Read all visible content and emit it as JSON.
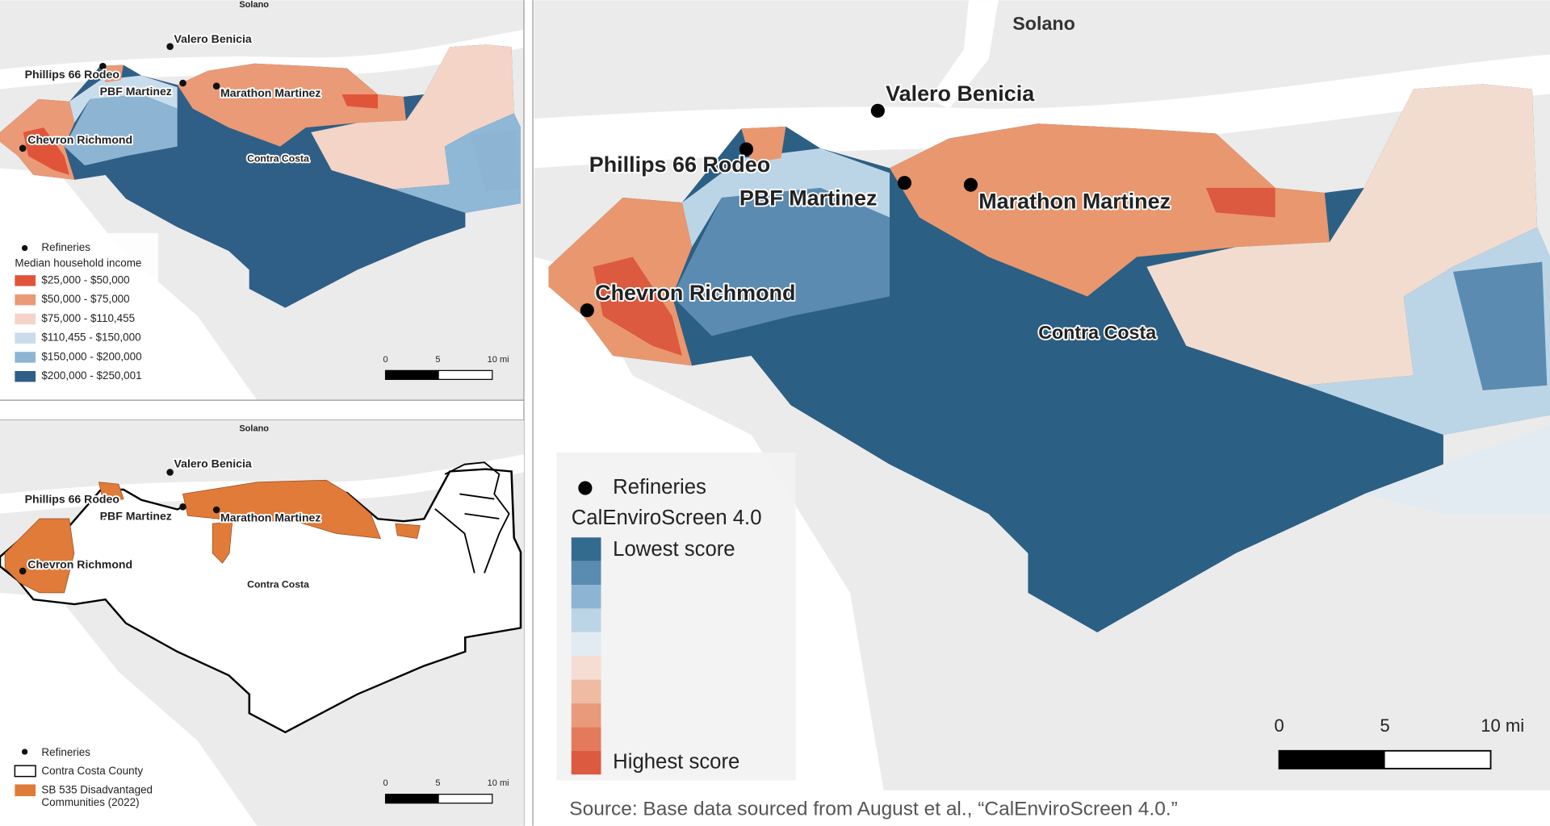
{
  "income_map": {
    "places": [
      "Solano",
      "Valero Benicia",
      "Phillips 66 Rodeo",
      "PBF Martinez",
      "Marathon Martinez",
      "Chevron Richmond",
      "Contra Costa"
    ],
    "legend": {
      "refineries": "Refineries",
      "title": "Median household income",
      "items": [
        {
          "label": "$25,000 - $50,000",
          "color": "#e0553a"
        },
        {
          "label": "$50,000 - $75,000",
          "color": "#ea9a76"
        },
        {
          "label": "$75,000 - $110,455",
          "color": "#f3d4c6"
        },
        {
          "label": "$110,455 - $150,000",
          "color": "#c9dceb"
        },
        {
          "label": "$150,000 - $200,000",
          "color": "#8db5d3"
        },
        {
          "label": "$200,000 - $250,001",
          "color": "#2f5f86"
        }
      ]
    },
    "scale": [
      "0",
      "5",
      "10 mi"
    ]
  },
  "sb535_map": {
    "places": [
      "Solano",
      "Valero Benicia",
      "Phillips 66 Rodeo",
      "PBF Martinez",
      "Marathon Martinez",
      "Chevron Richmond",
      "Contra Costa"
    ],
    "legend": {
      "refineries": "Refineries",
      "county": "Contra Costa County",
      "disadvantaged": {
        "lines": [
          "SB 535 Disadvantaged",
          "Communities (2022)"
        ],
        "color": "#e07b39"
      }
    },
    "scale": [
      "0",
      "5",
      "10 mi"
    ]
  },
  "calenviroscreen_map": {
    "places": [
      "Solano",
      "Valero Benicia",
      "Phillips 66 Rodeo",
      "PBF Martinez",
      "Marathon Martinez",
      "Chevron Richmond",
      "Contra Costa"
    ],
    "legend": {
      "refineries": "Refineries",
      "title": "CalEnviroScreen 4.0",
      "low": "Lowest score",
      "high": "Highest score",
      "colors": [
        "#336b8f",
        "#5a8bb0",
        "#8db5d3",
        "#bcd5e6",
        "#e2ebf1",
        "#f5ddd3",
        "#f0bba3",
        "#e99a7a",
        "#e37a5c",
        "#dc5a3f"
      ]
    },
    "scale": [
      "0",
      "5",
      "10 mi"
    ]
  },
  "source": "Source: Base data sourced from August et al., “CalEnviroScreen 4.0.”"
}
